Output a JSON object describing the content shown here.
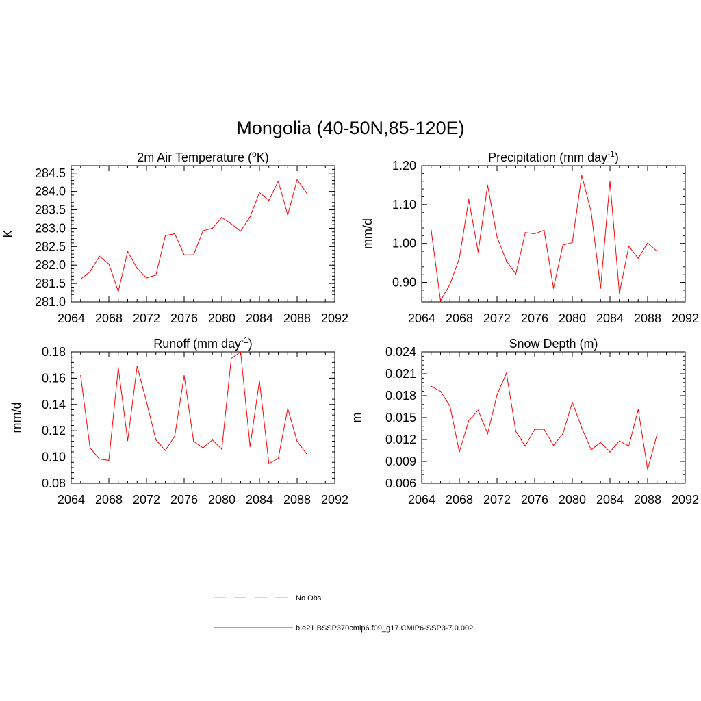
{
  "title": "Mongolia (40-50N,85-120E)",
  "legend": [
    {
      "label": "No Obs",
      "color": "#a0a0ff",
      "style": "dashed"
    },
    {
      "label": "b.e21.BSSP370cmip6.f09_g17.CMIP6-SSP3-7.0.002",
      "color": "#ff0000",
      "style": "solid"
    }
  ],
  "chart_data": [
    {
      "type": "line",
      "title": "2m Air Temperature (",
      "title_sup": "o",
      "title_after_sup": "K)",
      "xlabel": "",
      "ylabel": "K",
      "xlim": [
        2064,
        2092
      ],
      "ylim": [
        281.0,
        284.7
      ],
      "xticks": [
        2064,
        2068,
        2072,
        2076,
        2080,
        2084,
        2088,
        2092
      ],
      "xtick_labels": [
        "2064",
        "2068",
        "2072",
        "2076",
        "2080",
        "2084",
        "2088",
        "2092"
      ],
      "yticks": [
        281.0,
        281.5,
        282.0,
        282.5,
        283.0,
        283.5,
        284.0,
        284.5
      ],
      "ytick_labels": [
        "281.0",
        "281.5",
        "282.0",
        "282.5",
        "283.0",
        "283.5",
        "284.0",
        "284.5"
      ],
      "series": [
        {
          "color": "#ff0000",
          "x": [
            2065,
            2066,
            2067,
            2068,
            2069,
            2070,
            2071,
            2072,
            2073,
            2074,
            2075,
            2076,
            2077,
            2078,
            2079,
            2080,
            2081,
            2082,
            2083,
            2084,
            2085,
            2086,
            2087,
            2088,
            2089
          ],
          "y": [
            281.62,
            281.82,
            282.24,
            282.03,
            281.28,
            282.37,
            281.91,
            281.65,
            281.73,
            282.8,
            282.85,
            282.28,
            282.28,
            282.93,
            283.0,
            283.29,
            283.12,
            282.92,
            283.31,
            283.97,
            283.76,
            284.28,
            283.36,
            284.32,
            283.96
          ]
        }
      ]
    },
    {
      "type": "line",
      "title": "Precipitation (mm day",
      "title_sup": "-1",
      "title_after_sup": ")",
      "xlabel": "",
      "ylabel": "mm/d",
      "xlim": [
        2064,
        2092
      ],
      "ylim": [
        0.85,
        1.2
      ],
      "xticks": [
        2064,
        2068,
        2072,
        2076,
        2080,
        2084,
        2088,
        2092
      ],
      "xtick_labels": [
        "2064",
        "2068",
        "2072",
        "2076",
        "2080",
        "2084",
        "2088",
        "2092"
      ],
      "yticks": [
        0.9,
        1.0,
        1.1,
        1.2
      ],
      "ytick_labels": [
        "0.90",
        "1.00",
        "1.10",
        "1.20"
      ],
      "series": [
        {
          "color": "#ff0000",
          "x": [
            2065,
            2066,
            2067,
            2068,
            2069,
            2070,
            2071,
            2072,
            2073,
            2074,
            2075,
            2076,
            2077,
            2078,
            2079,
            2080,
            2081,
            2082,
            2083,
            2084,
            2085,
            2086,
            2087,
            2088,
            2089
          ],
          "y": [
            1.035,
            0.853,
            0.895,
            0.962,
            1.113,
            0.978,
            1.15,
            1.017,
            0.955,
            0.922,
            1.028,
            1.025,
            1.034,
            0.885,
            0.996,
            1.002,
            1.175,
            1.082,
            0.885,
            1.16,
            0.872,
            0.993,
            0.962,
            1.001,
            0.98
          ]
        }
      ]
    },
    {
      "type": "line",
      "title": "Runoff (mm day",
      "title_sup": "-1",
      "title_after_sup": ")",
      "xlabel": "",
      "ylabel": "mm/d",
      "xlim": [
        2064,
        2092
      ],
      "ylim": [
        0.08,
        0.18
      ],
      "xticks": [
        2064,
        2068,
        2072,
        2076,
        2080,
        2084,
        2088,
        2092
      ],
      "xtick_labels": [
        "2064",
        "2068",
        "2072",
        "2076",
        "2080",
        "2084",
        "2088",
        "2092"
      ],
      "yticks": [
        0.08,
        0.1,
        0.12,
        0.14,
        0.16,
        0.18
      ],
      "ytick_labels": [
        "0.08",
        "0.10",
        "0.12",
        "0.14",
        "0.16",
        "0.18"
      ],
      "series": [
        {
          "color": "#ff0000",
          "x": [
            2065,
            2066,
            2067,
            2068,
            2069,
            2070,
            2071,
            2072,
            2073,
            2074,
            2075,
            2076,
            2077,
            2078,
            2079,
            2080,
            2081,
            2082,
            2083,
            2084,
            2085,
            2086,
            2087,
            2088,
            2089
          ],
          "y": [
            0.162,
            0.107,
            0.0985,
            0.0975,
            0.168,
            0.1125,
            0.169,
            0.142,
            0.113,
            0.105,
            0.116,
            0.162,
            0.112,
            0.107,
            0.113,
            0.106,
            0.175,
            0.18,
            0.108,
            0.158,
            0.095,
            0.099,
            0.137,
            0.112,
            0.1025
          ]
        }
      ]
    },
    {
      "type": "line",
      "title": "Snow Depth (m)",
      "title_sup": "",
      "title_after_sup": "",
      "xlabel": "",
      "ylabel": "m",
      "xlim": [
        2064,
        2092
      ],
      "ylim": [
        0.006,
        0.024
      ],
      "xticks": [
        2064,
        2068,
        2072,
        2076,
        2080,
        2084,
        2088,
        2092
      ],
      "xtick_labels": [
        "2064",
        "2068",
        "2072",
        "2076",
        "2080",
        "2084",
        "2088",
        "2092"
      ],
      "yticks": [
        0.006,
        0.009,
        0.012,
        0.015,
        0.018,
        0.021,
        0.024
      ],
      "ytick_labels": [
        "0.006",
        "0.009",
        "0.012",
        "0.015",
        "0.018",
        "0.021",
        "0.024"
      ],
      "series": [
        {
          "color": "#ff0000",
          "x": [
            2065,
            2066,
            2067,
            2068,
            2069,
            2070,
            2071,
            2072,
            2073,
            2074,
            2075,
            2076,
            2077,
            2078,
            2079,
            2080,
            2081,
            2082,
            2083,
            2084,
            2085,
            2086,
            2087,
            2088,
            2089
          ],
          "y": [
            0.0193,
            0.0186,
            0.0166,
            0.0103,
            0.0146,
            0.016,
            0.0128,
            0.0181,
            0.0211,
            0.0131,
            0.0111,
            0.0134,
            0.0134,
            0.0112,
            0.0128,
            0.0171,
            0.0136,
            0.0106,
            0.0116,
            0.0103,
            0.0118,
            0.0111,
            0.0161,
            0.0079,
            0.0127
          ]
        }
      ]
    }
  ]
}
